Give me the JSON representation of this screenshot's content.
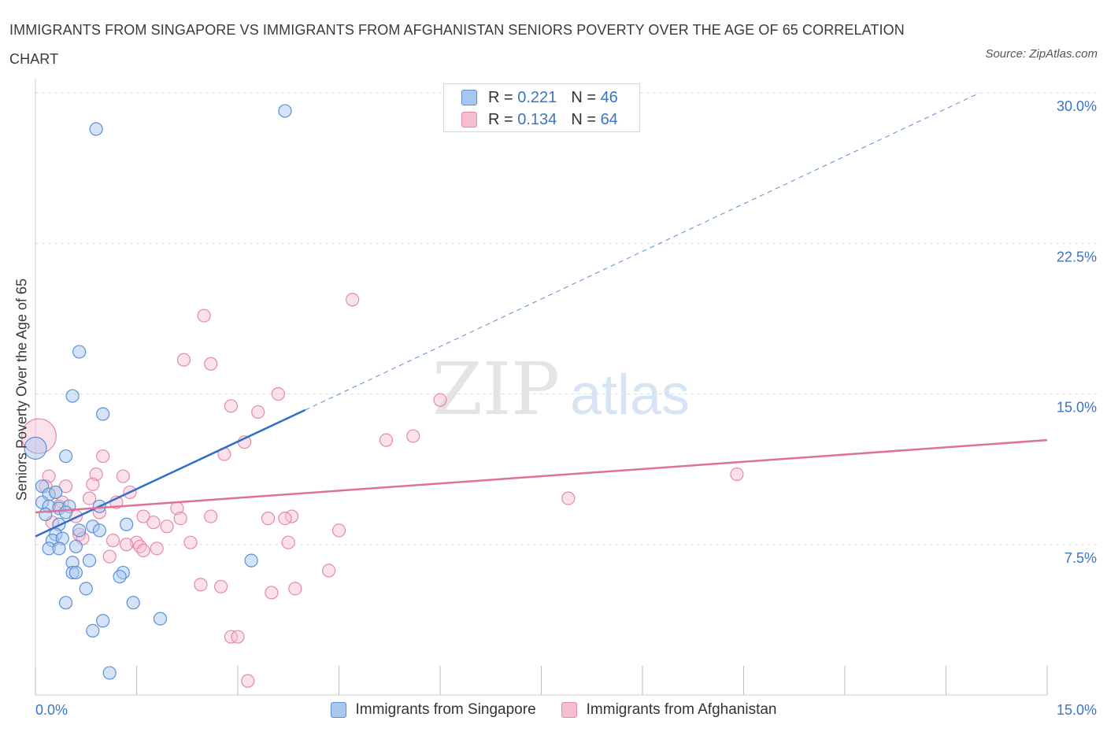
{
  "title": "IMMIGRANTS FROM SINGAPORE VS IMMIGRANTS FROM AFGHANISTAN SENIORS POVERTY OVER THE AGE OF 65 CORRELATION CHART",
  "source": "Source: ZipAtlas.com",
  "watermark": {
    "zip": "ZIP",
    "atlas": "atlas"
  },
  "colors": {
    "singapore_fill": "#a9c8f0",
    "singapore_stroke": "#5b8fd6",
    "singapore_line": "#2f6fc9",
    "afghanistan_fill": "#f6bfd0",
    "afghanistan_stroke": "#e589a8",
    "afghanistan_line": "#e0709a",
    "tick_label": "#3a74c4",
    "grid": "#dddddd"
  },
  "legend_stats": [
    {
      "r_label": "R =",
      "r": "0.221",
      "n_label": "N =",
      "n": "46"
    },
    {
      "r_label": "R =",
      "r": "0.134",
      "n_label": "N =",
      "n": "64"
    }
  ],
  "chart_data": {
    "type": "scatter",
    "title": "IMMIGRANTS FROM SINGAPORE VS IMMIGRANTS FROM AFGHANISTAN SENIORS POVERTY OVER THE AGE OF 65 CORRELATION CHART",
    "xlabel": "",
    "ylabel": "Seniors Poverty Over the Age of 65",
    "xlim": [
      0,
      15
    ],
    "ylim": [
      0,
      30
    ],
    "x_tick_labels": [
      "0.0%",
      "15.0%"
    ],
    "y_ticks": [
      7.5,
      15,
      22.5,
      30
    ],
    "y_tick_labels": [
      "7.5%",
      "15.0%",
      "22.5%",
      "30.0%"
    ],
    "grid": true,
    "legend_position": "bottom",
    "series": [
      {
        "name": "Immigrants from Singapore",
        "R": 0.221,
        "N": 46,
        "trend": {
          "x_start": 0.0,
          "y_start": 7.9,
          "x_end_solid": 4.0,
          "y_end_solid": 14.2,
          "x_end_dashed": 14.0,
          "y_end_dashed": 30.0
        },
        "points": [
          {
            "x": 0.9,
            "y": 28.2
          },
          {
            "x": 3.7,
            "y": 29.1
          },
          {
            "x": 0.0,
            "y": 12.3
          },
          {
            "x": 0.65,
            "y": 17.1
          },
          {
            "x": 0.55,
            "y": 14.9
          },
          {
            "x": 1.0,
            "y": 14.0
          },
          {
            "x": 0.45,
            "y": 11.9
          },
          {
            "x": 0.1,
            "y": 10.4
          },
          {
            "x": 0.2,
            "y": 10.0
          },
          {
            "x": 0.3,
            "y": 10.1
          },
          {
            "x": 0.1,
            "y": 9.6
          },
          {
            "x": 0.2,
            "y": 9.4
          },
          {
            "x": 0.35,
            "y": 9.3
          },
          {
            "x": 0.5,
            "y": 9.4
          },
          {
            "x": 0.45,
            "y": 9.1
          },
          {
            "x": 0.15,
            "y": 9.0
          },
          {
            "x": 0.95,
            "y": 9.4
          },
          {
            "x": 0.35,
            "y": 8.5
          },
          {
            "x": 0.85,
            "y": 8.4
          },
          {
            "x": 1.35,
            "y": 8.5
          },
          {
            "x": 0.3,
            "y": 8.0
          },
          {
            "x": 0.25,
            "y": 7.7
          },
          {
            "x": 0.4,
            "y": 7.8
          },
          {
            "x": 0.65,
            "y": 8.2
          },
          {
            "x": 0.95,
            "y": 8.2
          },
          {
            "x": 0.2,
            "y": 7.3
          },
          {
            "x": 0.35,
            "y": 7.3
          },
          {
            "x": 0.6,
            "y": 7.4
          },
          {
            "x": 0.55,
            "y": 6.6
          },
          {
            "x": 0.8,
            "y": 6.7
          },
          {
            "x": 3.2,
            "y": 6.7
          },
          {
            "x": 0.55,
            "y": 6.1
          },
          {
            "x": 0.6,
            "y": 6.1
          },
          {
            "x": 1.3,
            "y": 6.1
          },
          {
            "x": 1.25,
            "y": 5.9
          },
          {
            "x": 0.75,
            "y": 5.3
          },
          {
            "x": 0.45,
            "y": 4.6
          },
          {
            "x": 1.45,
            "y": 4.6
          },
          {
            "x": 1.0,
            "y": 3.7
          },
          {
            "x": 1.85,
            "y": 3.8
          },
          {
            "x": 0.85,
            "y": 3.2
          },
          {
            "x": 1.1,
            "y": 1.1
          }
        ]
      },
      {
        "name": "Immigrants from Afghanistan",
        "R": 0.134,
        "N": 64,
        "trend": {
          "x_start": 0.0,
          "y_start": 9.1,
          "x_end": 15.0,
          "y_end": 12.7
        },
        "points": [
          {
            "x": 0.05,
            "y": 12.9
          },
          {
            "x": 4.7,
            "y": 19.7
          },
          {
            "x": 2.5,
            "y": 18.9
          },
          {
            "x": 2.2,
            "y": 16.7
          },
          {
            "x": 2.6,
            "y": 16.5
          },
          {
            "x": 3.6,
            "y": 15.0
          },
          {
            "x": 6.0,
            "y": 14.7
          },
          {
            "x": 2.9,
            "y": 14.4
          },
          {
            "x": 3.3,
            "y": 14.1
          },
          {
            "x": 5.6,
            "y": 12.9
          },
          {
            "x": 5.2,
            "y": 12.7
          },
          {
            "x": 3.1,
            "y": 12.6
          },
          {
            "x": 2.8,
            "y": 12.0
          },
          {
            "x": 1.0,
            "y": 11.9
          },
          {
            "x": 10.4,
            "y": 11.0
          },
          {
            "x": 0.9,
            "y": 11.0
          },
          {
            "x": 1.3,
            "y": 10.9
          },
          {
            "x": 0.2,
            "y": 10.9
          },
          {
            "x": 0.85,
            "y": 10.5
          },
          {
            "x": 0.15,
            "y": 10.4
          },
          {
            "x": 0.45,
            "y": 10.4
          },
          {
            "x": 1.4,
            "y": 10.1
          },
          {
            "x": 0.3,
            "y": 10.1
          },
          {
            "x": 0.8,
            "y": 9.8
          },
          {
            "x": 7.9,
            "y": 9.8
          },
          {
            "x": 1.2,
            "y": 9.6
          },
          {
            "x": 0.4,
            "y": 9.6
          },
          {
            "x": 0.35,
            "y": 9.4
          },
          {
            "x": 2.1,
            "y": 9.3
          },
          {
            "x": 0.95,
            "y": 9.1
          },
          {
            "x": 1.6,
            "y": 8.9
          },
          {
            "x": 2.6,
            "y": 8.9
          },
          {
            "x": 3.8,
            "y": 8.9
          },
          {
            "x": 0.6,
            "y": 8.9
          },
          {
            "x": 3.45,
            "y": 8.8
          },
          {
            "x": 3.7,
            "y": 8.8
          },
          {
            "x": 2.15,
            "y": 8.8
          },
          {
            "x": 0.25,
            "y": 8.6
          },
          {
            "x": 1.75,
            "y": 8.6
          },
          {
            "x": 1.95,
            "y": 8.4
          },
          {
            "x": 4.5,
            "y": 8.2
          },
          {
            "x": 0.65,
            "y": 8.0
          },
          {
            "x": 0.7,
            "y": 7.8
          },
          {
            "x": 1.15,
            "y": 7.7
          },
          {
            "x": 2.3,
            "y": 7.6
          },
          {
            "x": 3.75,
            "y": 7.6
          },
          {
            "x": 1.5,
            "y": 7.6
          },
          {
            "x": 1.35,
            "y": 7.5
          },
          {
            "x": 1.55,
            "y": 7.4
          },
          {
            "x": 1.8,
            "y": 7.3
          },
          {
            "x": 1.6,
            "y": 7.2
          },
          {
            "x": 1.1,
            "y": 6.9
          },
          {
            "x": 4.35,
            "y": 6.2
          },
          {
            "x": 2.45,
            "y": 5.5
          },
          {
            "x": 2.75,
            "y": 5.4
          },
          {
            "x": 3.85,
            "y": 5.3
          },
          {
            "x": 3.5,
            "y": 5.1
          },
          {
            "x": 2.9,
            "y": 2.9
          },
          {
            "x": 3.0,
            "y": 2.9
          },
          {
            "x": 3.15,
            "y": 0.7
          }
        ]
      }
    ]
  },
  "bottom_legend": [
    "Immigrants from Singapore",
    "Immigrants from Afghanistan"
  ]
}
